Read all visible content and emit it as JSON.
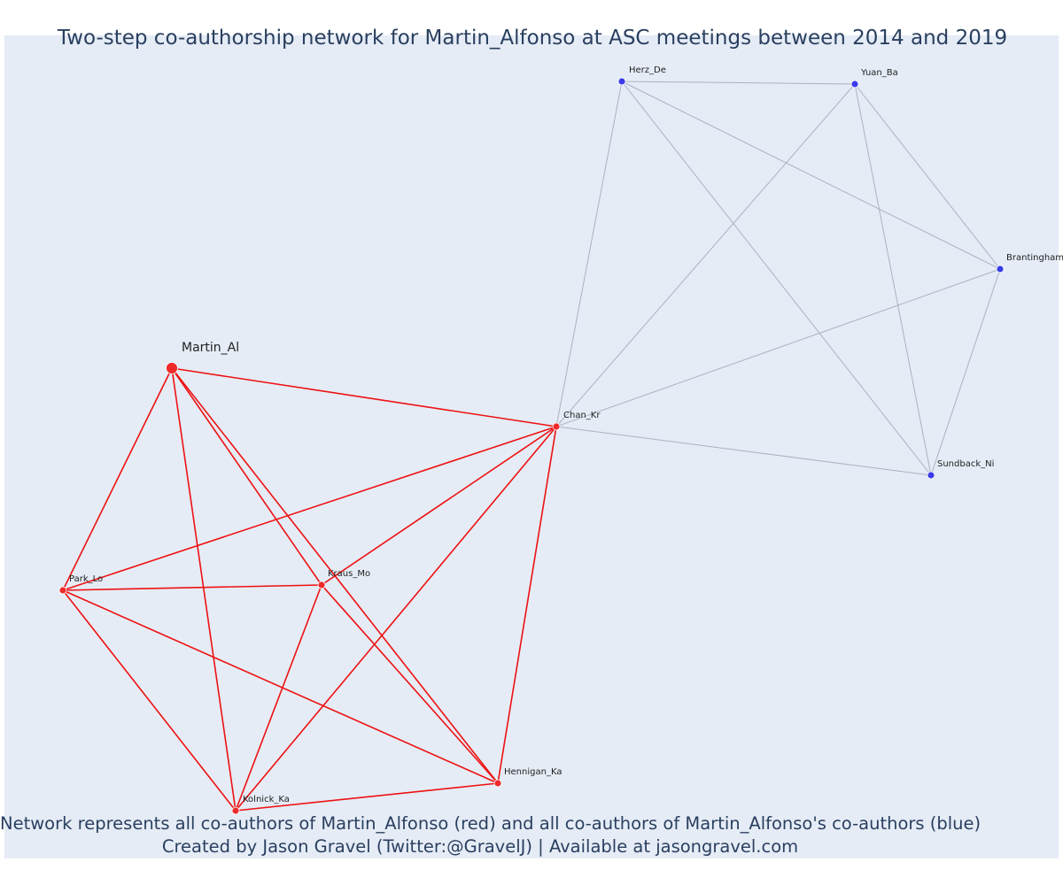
{
  "title": "Two-step co-authorship network for Martin_Alfonso at ASC meetings between 2014 and 2019",
  "caption": {
    "line1": "Network represents all co-authors of Martin_Alfonso (red) and all co-authors of Martin_Alfonso's co-authors (blue)",
    "line2": "Created by Jason Gravel (Twitter:@GravelJ) | Available at jasongravel.com"
  },
  "colors": {
    "red": "#ee2a2a",
    "blue": "#3b3bea",
    "red_edge": "#ee1111",
    "grey_edge": "#aab2c4",
    "background": "#e5ecf6",
    "text": "#2a3f5f"
  },
  "nodes": [
    {
      "id": "Martin_Al",
      "group": "ego"
    },
    {
      "id": "Chan_Kr",
      "group": "red"
    },
    {
      "id": "Park_Lo",
      "group": "red"
    },
    {
      "id": "Kraus_Mo",
      "group": "red"
    },
    {
      "id": "Kolnick_Ka",
      "group": "red"
    },
    {
      "id": "Hennigan_Ka",
      "group": "red"
    },
    {
      "id": "Herz_De",
      "group": "blue"
    },
    {
      "id": "Yuan_Ba",
      "group": "blue"
    },
    {
      "id": "Brantingham",
      "group": "blue"
    },
    {
      "id": "Sundback_Ni",
      "group": "blue"
    }
  ],
  "edges": [
    [
      "Martin_Al",
      "Chan_Kr",
      "red"
    ],
    [
      "Martin_Al",
      "Park_Lo",
      "red"
    ],
    [
      "Martin_Al",
      "Kraus_Mo",
      "red"
    ],
    [
      "Martin_Al",
      "Kolnick_Ka",
      "red"
    ],
    [
      "Martin_Al",
      "Hennigan_Ka",
      "red"
    ],
    [
      "Chan_Kr",
      "Park_Lo",
      "red"
    ],
    [
      "Chan_Kr",
      "Kraus_Mo",
      "red"
    ],
    [
      "Chan_Kr",
      "Kolnick_Ka",
      "red"
    ],
    [
      "Chan_Kr",
      "Hennigan_Ka",
      "red"
    ],
    [
      "Park_Lo",
      "Kraus_Mo",
      "red"
    ],
    [
      "Park_Lo",
      "Kolnick_Ka",
      "red"
    ],
    [
      "Park_Lo",
      "Hennigan_Ka",
      "red"
    ],
    [
      "Kraus_Mo",
      "Kolnick_Ka",
      "red"
    ],
    [
      "Kraus_Mo",
      "Hennigan_Ka",
      "red"
    ],
    [
      "Kolnick_Ka",
      "Hennigan_Ka",
      "red"
    ],
    [
      "Chan_Kr",
      "Herz_De",
      "grey"
    ],
    [
      "Chan_Kr",
      "Yuan_Ba",
      "grey"
    ],
    [
      "Chan_Kr",
      "Brantingham",
      "grey"
    ],
    [
      "Chan_Kr",
      "Sundback_Ni",
      "grey"
    ],
    [
      "Herz_De",
      "Yuan_Ba",
      "grey"
    ],
    [
      "Herz_De",
      "Brantingham",
      "grey"
    ],
    [
      "Herz_De",
      "Sundback_Ni",
      "grey"
    ],
    [
      "Yuan_Ba",
      "Brantingham",
      "grey"
    ],
    [
      "Yuan_Ba",
      "Sundback_Ni",
      "grey"
    ],
    [
      "Brantingham",
      "Sundback_Ni",
      "grey"
    ]
  ]
}
